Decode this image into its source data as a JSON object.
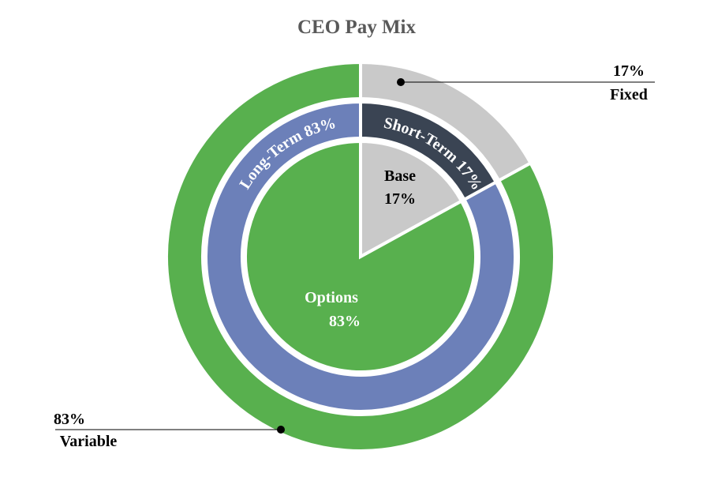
{
  "chart_data": {
    "type": "pie",
    "title": "CEO Pay Mix",
    "rings": [
      {
        "categories": [
          "Fixed",
          "Variable"
        ],
        "values": [
          17,
          83
        ],
        "value_labels": [
          "17%",
          "83%"
        ],
        "colors": [
          "#c9c9c9",
          "#58b04e"
        ]
      },
      {
        "categories": [
          "Short-Term",
          "Long-Term"
        ],
        "values": [
          17,
          83
        ],
        "value_labels": [
          "17%",
          "83%"
        ],
        "colors": [
          "#3a4453",
          "#6c80b9"
        ]
      },
      {
        "categories": [
          "Base",
          "Options"
        ],
        "values": [
          17,
          83
        ],
        "value_labels": [
          "17%",
          "83%"
        ],
        "colors": [
          "#c9c9c9",
          "#58b04e"
        ]
      }
    ]
  }
}
